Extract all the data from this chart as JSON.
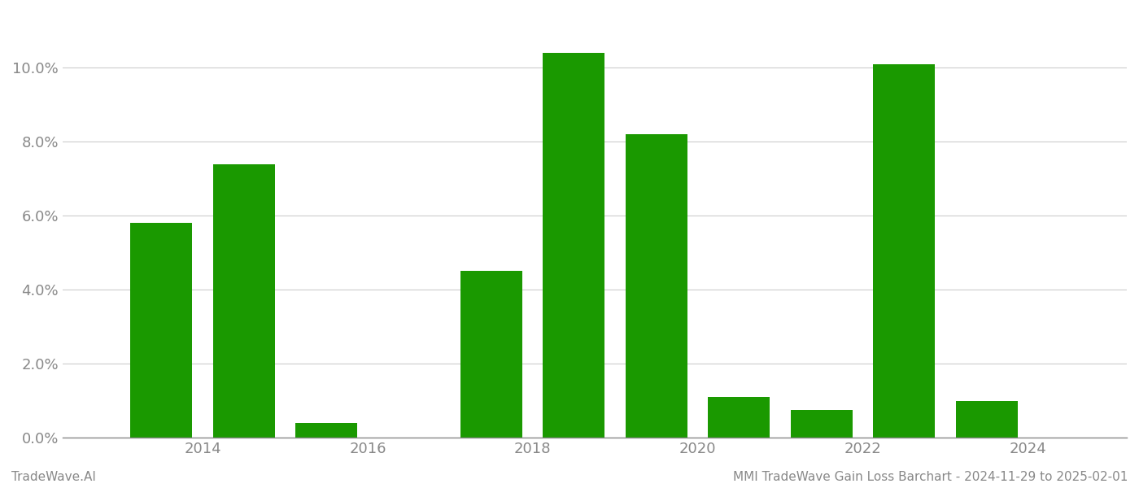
{
  "years": [
    2013,
    2014,
    2015,
    2016,
    2017,
    2018,
    2019,
    2020,
    2021,
    2022,
    2023,
    2024
  ],
  "values": [
    0.058,
    0.074,
    0.004,
    0.0,
    0.045,
    0.104,
    0.082,
    0.011,
    0.0075,
    0.101,
    0.01,
    0.0001
  ],
  "bar_color": "#1a9900",
  "background_color": "#ffffff",
  "grid_color": "#cccccc",
  "axis_color": "#888888",
  "tick_color": "#888888",
  "ylim": [
    0,
    0.115
  ],
  "yticks": [
    0.0,
    0.02,
    0.04,
    0.06,
    0.08,
    0.1
  ],
  "xtick_positions": [
    2014,
    2016,
    2018,
    2020,
    2022,
    2024
  ],
  "xtick_labels": [
    "2014",
    "2016",
    "2018",
    "2020",
    "2022",
    "2024"
  ],
  "xlim_min": 2012.3,
  "xlim_max": 2025.2,
  "footer_left": "TradeWave.AI",
  "footer_right": "MMI TradeWave Gain Loss Barchart - 2024-11-29 to 2025-02-01",
  "bar_width": 0.75
}
